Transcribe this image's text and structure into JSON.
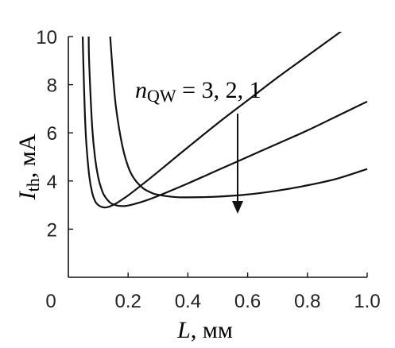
{
  "chart_data": {
    "type": "line",
    "xlabel": "L, мм",
    "ylabel": "I_th, мА",
    "xlim": [
      0,
      1.0
    ],
    "ylim": [
      0,
      10
    ],
    "xticks": [
      "0",
      "0.2",
      "0.4",
      "0.6",
      "0.8",
      "1.0"
    ],
    "xtick_values": [
      0,
      0.2,
      0.4,
      0.6,
      0.8,
      1.0
    ],
    "yticks": [
      "2",
      "4",
      "6",
      "8",
      "10"
    ],
    "ytick_values": [
      2,
      4,
      6,
      8,
      10
    ],
    "annotation": {
      "prefix": "n",
      "subscript": "QW",
      "suffix": " = 3, 2, 1"
    },
    "grid": false,
    "series": [
      {
        "x": [
          0.048,
          0.05,
          0.055,
          0.06,
          0.07,
          0.08,
          0.09,
          0.1,
          0.11,
          0.12,
          0.13,
          0.14,
          0.16,
          0.18,
          0.2,
          0.25,
          0.3,
          0.4,
          0.5,
          0.6,
          0.7,
          0.8,
          0.9,
          1.0
        ],
        "y": [
          10.0,
          9.0,
          6.9,
          5.6,
          4.2,
          3.5,
          3.15,
          3.0,
          2.93,
          2.9,
          2.91,
          2.95,
          3.07,
          3.23,
          3.4,
          3.88,
          4.38,
          5.4,
          6.4,
          7.35,
          8.3,
          9.2,
          10.1,
          11.0
        ]
      },
      {
        "x": [
          0.068,
          0.07,
          0.08,
          0.09,
          0.1,
          0.11,
          0.12,
          0.14,
          0.16,
          0.18,
          0.2,
          0.25,
          0.3,
          0.4,
          0.5,
          0.6,
          0.7,
          0.8,
          0.9,
          1.0
        ],
        "y": [
          10.0,
          8.8,
          6.2,
          4.9,
          4.15,
          3.7,
          3.4,
          3.1,
          2.99,
          2.96,
          2.98,
          3.15,
          3.38,
          3.9,
          4.45,
          5.0,
          5.55,
          6.1,
          6.7,
          7.3
        ]
      },
      {
        "x": [
          0.14,
          0.15,
          0.16,
          0.18,
          0.2,
          0.22,
          0.25,
          0.28,
          0.3,
          0.35,
          0.4,
          0.5,
          0.6,
          0.7,
          0.8,
          0.9,
          1.0
        ],
        "y": [
          10.0,
          8.3,
          7.0,
          5.5,
          4.6,
          4.1,
          3.7,
          3.5,
          3.43,
          3.34,
          3.32,
          3.35,
          3.44,
          3.6,
          3.82,
          4.1,
          4.5
        ]
      }
    ]
  }
}
